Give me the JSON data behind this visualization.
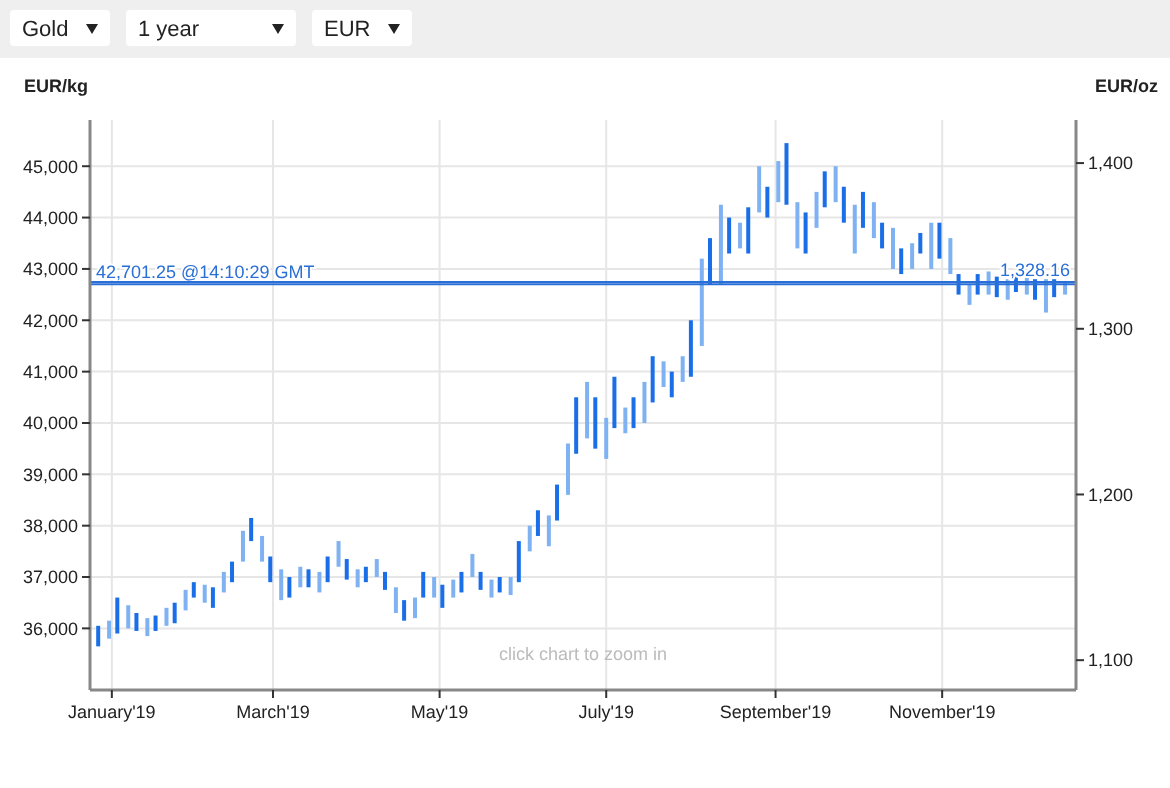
{
  "chart_data": {
    "type": "bar",
    "ylabel": "EUR/kg",
    "y2label": "EUR/oz",
    "annotations": [
      "Gold",
      "1 year",
      "EUR",
      "click chart to zoom in"
    ],
    "x": [
      "2018-12-27",
      "2018-12-31",
      "2019-01-03",
      "2019-01-07",
      "2019-01-10",
      "2019-01-14",
      "2019-01-17",
      "2019-01-21",
      "2019-01-24",
      "2019-01-28",
      "2019-01-31",
      "2019-02-04",
      "2019-02-07",
      "2019-02-11",
      "2019-02-14",
      "2019-02-18",
      "2019-02-21",
      "2019-02-25",
      "2019-02-28",
      "2019-03-04",
      "2019-03-07",
      "2019-03-11",
      "2019-03-14",
      "2019-03-18",
      "2019-03-21",
      "2019-03-25",
      "2019-03-28",
      "2019-04-01",
      "2019-04-04",
      "2019-04-08",
      "2019-04-11",
      "2019-04-15",
      "2019-04-18",
      "2019-04-22",
      "2019-04-25",
      "2019-04-29",
      "2019-05-02",
      "2019-05-06",
      "2019-05-09",
      "2019-05-13",
      "2019-05-16",
      "2019-05-20",
      "2019-05-23",
      "2019-05-27",
      "2019-05-30",
      "2019-06-03",
      "2019-06-06",
      "2019-06-10",
      "2019-06-13",
      "2019-06-17",
      "2019-06-20",
      "2019-06-24",
      "2019-06-27",
      "2019-07-01",
      "2019-07-04",
      "2019-07-08",
      "2019-07-11",
      "2019-07-15",
      "2019-07-18",
      "2019-07-22",
      "2019-07-25",
      "2019-07-29",
      "2019-08-01",
      "2019-08-05",
      "2019-08-08",
      "2019-08-12",
      "2019-08-15",
      "2019-08-19",
      "2019-08-22",
      "2019-08-26",
      "2019-08-29",
      "2019-09-02",
      "2019-09-05",
      "2019-09-09",
      "2019-09-12",
      "2019-09-16",
      "2019-09-19",
      "2019-09-23",
      "2019-09-26",
      "2019-09-30",
      "2019-10-03",
      "2019-10-07",
      "2019-10-10",
      "2019-10-14",
      "2019-10-17",
      "2019-10-21",
      "2019-10-24",
      "2019-10-28",
      "2019-10-31",
      "2019-11-04",
      "2019-11-07",
      "2019-11-11",
      "2019-11-14",
      "2019-11-18",
      "2019-11-21",
      "2019-11-25",
      "2019-11-28",
      "2019-12-02",
      "2019-12-05",
      "2019-12-09",
      "2019-12-12",
      "2019-12-16"
    ],
    "base": [
      35650,
      35800,
      35900,
      36000,
      35950,
      35850,
      35950,
      36050,
      36100,
      36350,
      36600,
      36500,
      36400,
      36700,
      36900,
      37300,
      37700,
      37300,
      36900,
      36550,
      36600,
      36800,
      36800,
      36700,
      36900,
      37200,
      36950,
      36800,
      36900,
      37000,
      36750,
      36300,
      36150,
      36200,
      36600,
      36600,
      36400,
      36600,
      36700,
      37000,
      36750,
      36600,
      36700,
      36650,
      36900,
      37500,
      37800,
      37600,
      38100,
      38600,
      39400,
      39700,
      39500,
      39300,
      39900,
      39800,
      39900,
      40000,
      40400,
      40700,
      40500,
      40800,
      40900,
      41500,
      42700,
      42700,
      43300,
      43400,
      43300,
      44100,
      44000,
      44300,
      44250,
      43400,
      43300,
      43800,
      44200,
      44300,
      43900,
      43300,
      43800,
      43600,
      43400,
      43000,
      42900,
      43000,
      43300,
      43000,
      43200,
      42900,
      42500,
      42300,
      42500,
      42500,
      42450,
      42400,
      42550,
      42500,
      42400,
      42150,
      42450,
      42500
    ],
    "values": [
      400,
      350,
      700,
      450,
      350,
      350,
      300,
      350,
      400,
      400,
      300,
      350,
      400,
      400,
      400,
      600,
      450,
      500,
      500,
      600,
      400,
      400,
      350,
      400,
      500,
      500,
      400,
      350,
      300,
      350,
      350,
      500,
      400,
      400,
      500,
      400,
      450,
      350,
      400,
      450,
      350,
      350,
      300,
      350,
      800,
      500,
      500,
      600,
      700,
      1000,
      1100,
      1100,
      1000,
      800,
      1000,
      500,
      600,
      800,
      900,
      500,
      500,
      500,
      1100,
      1700,
      900,
      1550,
      700,
      500,
      900,
      900,
      600,
      800,
      1200,
      900,
      800,
      700,
      700,
      700,
      700,
      950,
      700,
      700,
      500,
      800,
      500,
      500,
      400,
      900,
      700,
      700,
      400,
      400,
      400,
      450,
      400,
      400,
      350,
      350,
      400,
      650,
      350,
      250
    ],
    "colors": [
      "#1a6fe8",
      "#7fb2f2",
      "#1a6fe8",
      "#7fb2f2",
      "#1a6fe8",
      "#7fb2f2",
      "#1a6fe8",
      "#7fb2f2",
      "#1a6fe8",
      "#7fb2f2",
      "#1a6fe8",
      "#7fb2f2",
      "#1a6fe8",
      "#7fb2f2",
      "#1a6fe8",
      "#7fb2f2",
      "#1a6fe8",
      "#7fb2f2",
      "#1a6fe8",
      "#7fb2f2",
      "#1a6fe8",
      "#7fb2f2",
      "#1a6fe8",
      "#7fb2f2",
      "#1a6fe8",
      "#7fb2f2",
      "#1a6fe8",
      "#7fb2f2",
      "#1a6fe8",
      "#7fb2f2",
      "#1a6fe8",
      "#7fb2f2",
      "#1a6fe8",
      "#7fb2f2",
      "#1a6fe8",
      "#7fb2f2",
      "#1a6fe8",
      "#7fb2f2",
      "#1a6fe8",
      "#7fb2f2",
      "#1a6fe8",
      "#7fb2f2",
      "#1a6fe8",
      "#7fb2f2",
      "#1a6fe8",
      "#7fb2f2",
      "#1a6fe8",
      "#7fb2f2",
      "#1a6fe8",
      "#7fb2f2",
      "#1a6fe8",
      "#7fb2f2",
      "#1a6fe8",
      "#7fb2f2",
      "#1a6fe8",
      "#7fb2f2",
      "#1a6fe8",
      "#7fb2f2",
      "#1a6fe8",
      "#7fb2f2",
      "#1a6fe8",
      "#7fb2f2",
      "#1a6fe8",
      "#7fb2f2",
      "#1a6fe8",
      "#7fb2f2",
      "#1a6fe8",
      "#7fb2f2",
      "#1a6fe8",
      "#7fb2f2",
      "#1a6fe8",
      "#7fb2f2",
      "#1a6fe8",
      "#7fb2f2",
      "#1a6fe8",
      "#7fb2f2",
      "#1a6fe8",
      "#7fb2f2",
      "#1a6fe8",
      "#7fb2f2",
      "#1a6fe8",
      "#7fb2f2",
      "#1a6fe8",
      "#7fb2f2",
      "#1a6fe8",
      "#7fb2f2",
      "#1a6fe8",
      "#7fb2f2",
      "#1a6fe8",
      "#7fb2f2",
      "#1a6fe8",
      "#7fb2f2",
      "#1a6fe8",
      "#7fb2f2",
      "#1a6fe8",
      "#7fb2f2",
      "#1a6fe8",
      "#7fb2f2",
      "#1a6fe8",
      "#7fb2f2",
      "#1a6fe8",
      "#7fb2f2"
    ],
    "xlim": [
      "2018-12-24",
      "2019-12-20"
    ],
    "xticks": [
      {
        "value": "2019-01-01",
        "label": "January'19"
      },
      {
        "value": "2019-03-01",
        "label": "March'19"
      },
      {
        "value": "2019-05-01",
        "label": "May'19"
      },
      {
        "value": "2019-07-01",
        "label": "July'19"
      },
      {
        "value": "2019-09-01",
        "label": "September'19"
      },
      {
        "value": "2019-11-01",
        "label": "November'19"
      }
    ],
    "ylim": [
      34800,
      45900
    ],
    "yticks": [
      {
        "value": 36000,
        "label": "36,000"
      },
      {
        "value": 37000,
        "label": "37,000"
      },
      {
        "value": 38000,
        "label": "38,000"
      },
      {
        "value": 39000,
        "label": "39,000"
      },
      {
        "value": 40000,
        "label": "40,000"
      },
      {
        "value": 41000,
        "label": "41,000"
      },
      {
        "value": 42000,
        "label": "42,000"
      },
      {
        "value": 43000,
        "label": "43,000"
      },
      {
        "value": 44000,
        "label": "44,000"
      },
      {
        "value": 45000,
        "label": "45,000"
      }
    ],
    "y2lim": [
      1082,
      1426
    ],
    "y2ticks": [
      {
        "value": 1100,
        "label": "1,100"
      },
      {
        "value": 1200,
        "label": "1,200"
      },
      {
        "value": 1300,
        "label": "1,300"
      },
      {
        "value": 1400,
        "label": "1,400"
      }
    ],
    "ref_lines": [
      {
        "axis": "y",
        "value": 42701.25,
        "label": "42,701.25 @14:10:29 GMT",
        "color": "#2a6fd6"
      },
      {
        "axis": "y2",
        "value": 1328.16,
        "label": "1,328.16",
        "color": "#2a6fd6"
      }
    ],
    "grid": true
  }
}
